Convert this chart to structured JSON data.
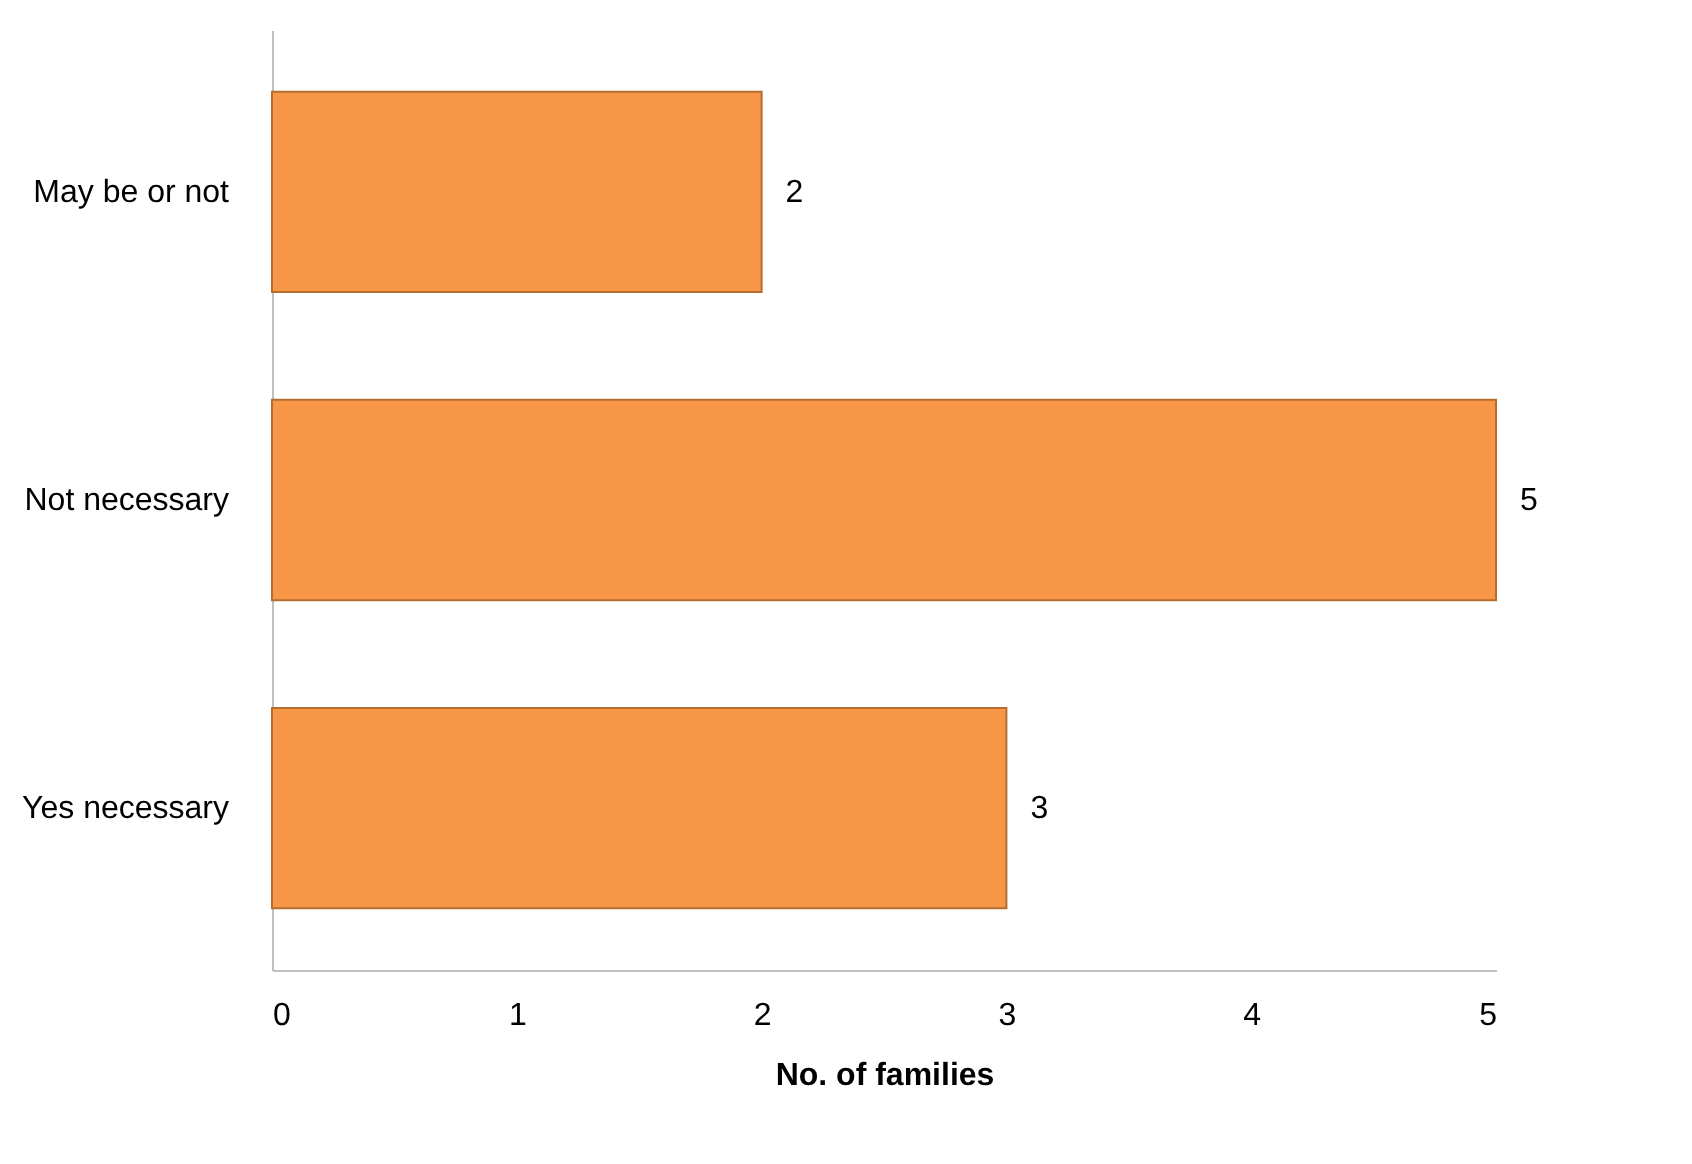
{
  "chart_data": {
    "type": "bar",
    "orientation": "horizontal",
    "categories": [
      "May be or not",
      "Not necessary",
      "Yes necessary"
    ],
    "values": [
      2,
      5,
      3
    ],
    "color": "#f79646",
    "xlabel": "No. of families",
    "xlim": [
      0,
      5
    ],
    "xticks": [
      0,
      1,
      2,
      3,
      4,
      5
    ],
    "data_labels": true,
    "grid": false
  }
}
